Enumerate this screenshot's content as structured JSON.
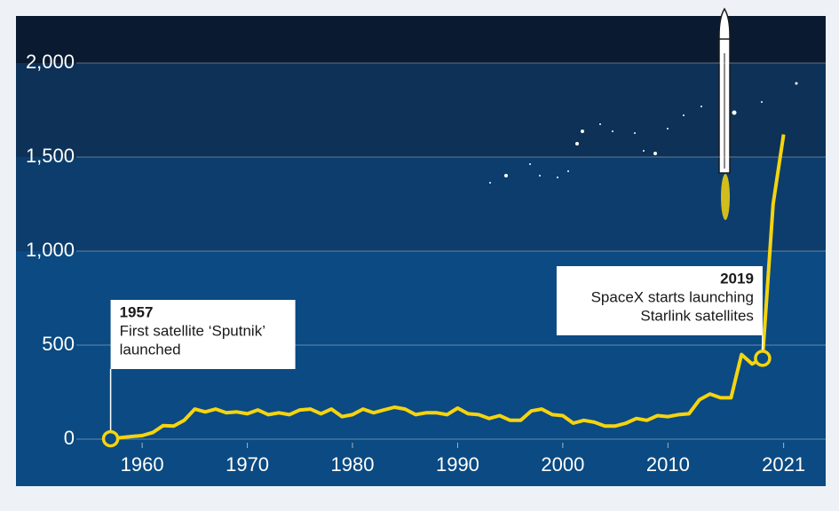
{
  "chart_data": {
    "type": "line",
    "x": [
      1957,
      1958,
      1959,
      1960,
      1961,
      1962,
      1963,
      1964,
      1965,
      1966,
      1967,
      1968,
      1969,
      1970,
      1971,
      1972,
      1973,
      1974,
      1975,
      1976,
      1977,
      1978,
      1979,
      1980,
      1981,
      1982,
      1983,
      1984,
      1985,
      1986,
      1987,
      1988,
      1989,
      1990,
      1991,
      1992,
      1993,
      1994,
      1995,
      1996,
      1997,
      1998,
      1999,
      2000,
      2001,
      2002,
      2003,
      2004,
      2005,
      2006,
      2007,
      2008,
      2009,
      2010,
      2011,
      2012,
      2013,
      2014,
      2015,
      2016,
      2017,
      2018,
      2019,
      2020,
      2021
    ],
    "series": [
      {
        "color": "#f5d40f",
        "values": [
          2,
          8,
          14,
          19,
          35,
          72,
          70,
          100,
          160,
          145,
          160,
          140,
          145,
          135,
          155,
          130,
          140,
          130,
          155,
          160,
          135,
          160,
          120,
          130,
          160,
          140,
          155,
          170,
          160,
          130,
          140,
          140,
          130,
          165,
          135,
          130,
          110,
          125,
          100,
          100,
          150,
          160,
          130,
          125,
          85,
          100,
          90,
          70,
          70,
          85,
          110,
          100,
          125,
          120,
          130,
          135,
          210,
          240,
          220,
          220,
          450,
          400,
          430,
          1250,
          1620
        ]
      }
    ],
    "xlim": [
      1948,
      2025
    ],
    "ylim": [
      -250,
      2250
    ],
    "xticks": [
      1960,
      1970,
      1980,
      1990,
      2000,
      2010,
      2021
    ],
    "yticks": [
      0,
      {
        "value": 500,
        "label": "500"
      },
      {
        "value": 1000,
        "label": "1,000"
      },
      {
        "value": 1500,
        "label": "1,500"
      },
      {
        "value": 2000,
        "label": "2,000"
      }
    ],
    "grid": true,
    "annotations": [
      {
        "x": 1957,
        "title": "1957",
        "lines": [
          "First satellite ‘Sputnik’",
          "launched"
        ]
      },
      {
        "x": 2019,
        "title": "2019",
        "lines": [
          "SpaceX starts launching",
          "Starlink satellites"
        ]
      }
    ]
  }
}
